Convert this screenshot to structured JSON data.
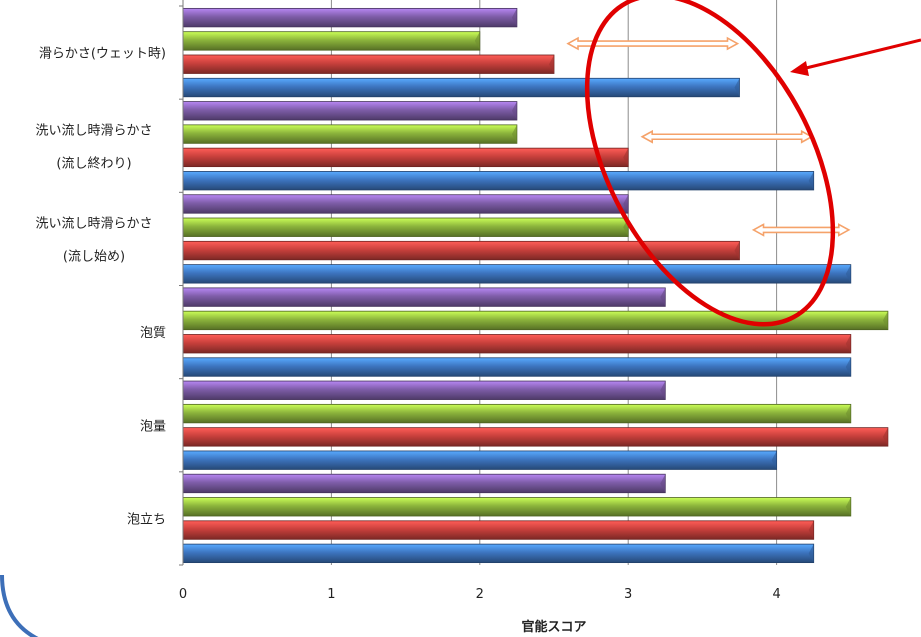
{
  "chart_data": {
    "type": "bar",
    "orientation": "horizontal",
    "xlabel": "官能スコア",
    "xlim": [
      0,
      4.9
    ],
    "xticks": [
      "0",
      "1",
      "2",
      "3",
      "4"
    ],
    "grid": true,
    "categories": [
      {
        "lines": [
          "滑らかさ(ウェット時)"
        ]
      },
      {
        "lines": [
          "洗い流し時滑らかさ",
          "(流し終わり)"
        ]
      },
      {
        "lines": [
          "洗い流し時滑らかさ",
          "(流し始め)"
        ]
      },
      {
        "lines": [
          "泡質"
        ]
      },
      {
        "lines": [
          "泡量"
        ]
      },
      {
        "lines": [
          "泡立ち"
        ]
      }
    ],
    "series": [
      {
        "color": "#7E5DA8",
        "values": [
          2.25,
          2.25,
          3.0,
          3.25,
          3.25,
          3.25
        ]
      },
      {
        "color": "#8CB43C",
        "values": [
          2.0,
          2.25,
          3.0,
          4.75,
          4.5,
          4.5
        ]
      },
      {
        "color": "#C8403C",
        "values": [
          2.5,
          3.0,
          3.75,
          4.5,
          4.75,
          4.25
        ]
      },
      {
        "color": "#3D75C0",
        "values": [
          3.75,
          4.25,
          4.5,
          4.5,
          4.0,
          4.25
        ]
      }
    ],
    "annotations": {
      "arrows": [
        {
          "category": 0,
          "from": 2.5,
          "to": 3.75
        },
        {
          "category": 1,
          "from": 3.0,
          "to": 4.25
        },
        {
          "category": 2,
          "from": 3.75,
          "to": 4.5
        }
      ],
      "arrow_color": "#F5A26A",
      "highlight_ellipse_color": "#E00000",
      "leader_line_color": "#E00000"
    }
  }
}
